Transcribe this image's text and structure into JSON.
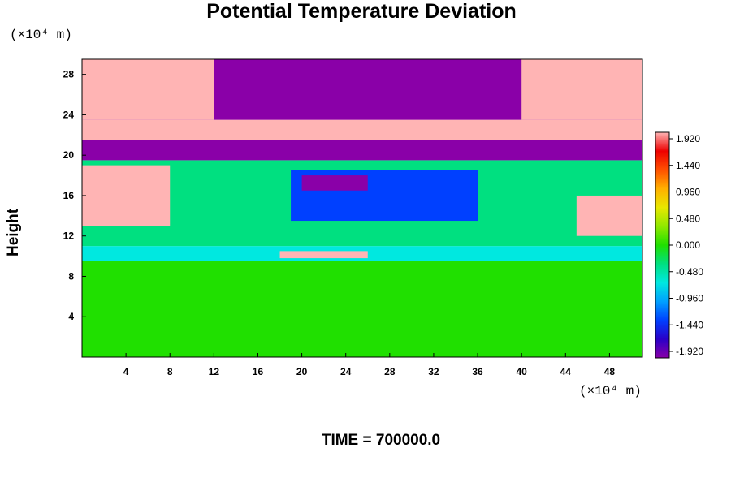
{
  "chart_data": {
    "type": "heatmap",
    "title": "Potential Temperature Deviation",
    "ylabel": "Height",
    "y_unit": "(×10⁴ m)",
    "x_unit": "(×10⁴ m)",
    "footer": "TIME = 700000.0",
    "xlim": [
      0,
      51
    ],
    "ylim": [
      0,
      29.5
    ],
    "x_ticks": [
      4,
      8,
      12,
      16,
      20,
      24,
      28,
      32,
      36,
      40,
      44,
      48
    ],
    "y_ticks": [
      4,
      8,
      12,
      16,
      20,
      24,
      28
    ],
    "colorbar": {
      "labels": [
        "1.920",
        "1.440",
        "0.960",
        "0.480",
        "0.000",
        "-0.480",
        "-0.960",
        "-1.440",
        "-1.920"
      ],
      "range": [
        -1.92,
        1.92
      ],
      "colors": [
        "#8a00a8",
        "#2a00c8",
        "#0040ff",
        "#00a0ff",
        "#00e8e0",
        "#00e080",
        "#20e000",
        "#90e800",
        "#e8e800",
        "#ffb000",
        "#ff5000",
        "#ee0000",
        "#ffb4b4"
      ]
    },
    "features": [
      {
        "x": [
          0,
          51
        ],
        "y": [
          0,
          9.5
        ],
        "value": 0.15
      },
      {
        "x": [
          0,
          51
        ],
        "y": [
          9.5,
          11
        ],
        "value": -0.7
      },
      {
        "x": [
          0,
          51
        ],
        "y": [
          11,
          19.5
        ],
        "value": -0.25
      },
      {
        "x": [
          0,
          51
        ],
        "y": [
          19.5,
          21.5
        ],
        "value": -1.92
      },
      {
        "x": [
          0,
          51
        ],
        "y": [
          21.5,
          23.5
        ],
        "value": 1.92
      },
      {
        "x": [
          0,
          51
        ],
        "y": [
          23.5,
          29.5
        ],
        "value": -1.92
      },
      {
        "x": [
          0,
          12
        ],
        "y": [
          23.5,
          29.5
        ],
        "value": 1.92
      },
      {
        "x": [
          40,
          51
        ],
        "y": [
          23.5,
          29.5
        ],
        "value": 1.92
      },
      {
        "x": [
          19,
          36
        ],
        "y": [
          13.5,
          18.5
        ],
        "value": -1.3
      },
      {
        "x": [
          20,
          26
        ],
        "y": [
          16.5,
          18
        ],
        "value": -1.92
      },
      {
        "x": [
          0,
          8
        ],
        "y": [
          13,
          19
        ],
        "value": 1.92
      },
      {
        "x": [
          45,
          51
        ],
        "y": [
          12,
          16
        ],
        "value": 1.92
      },
      {
        "x": [
          18,
          26
        ],
        "y": [
          9.8,
          10.5
        ],
        "value": 1.92
      }
    ]
  }
}
